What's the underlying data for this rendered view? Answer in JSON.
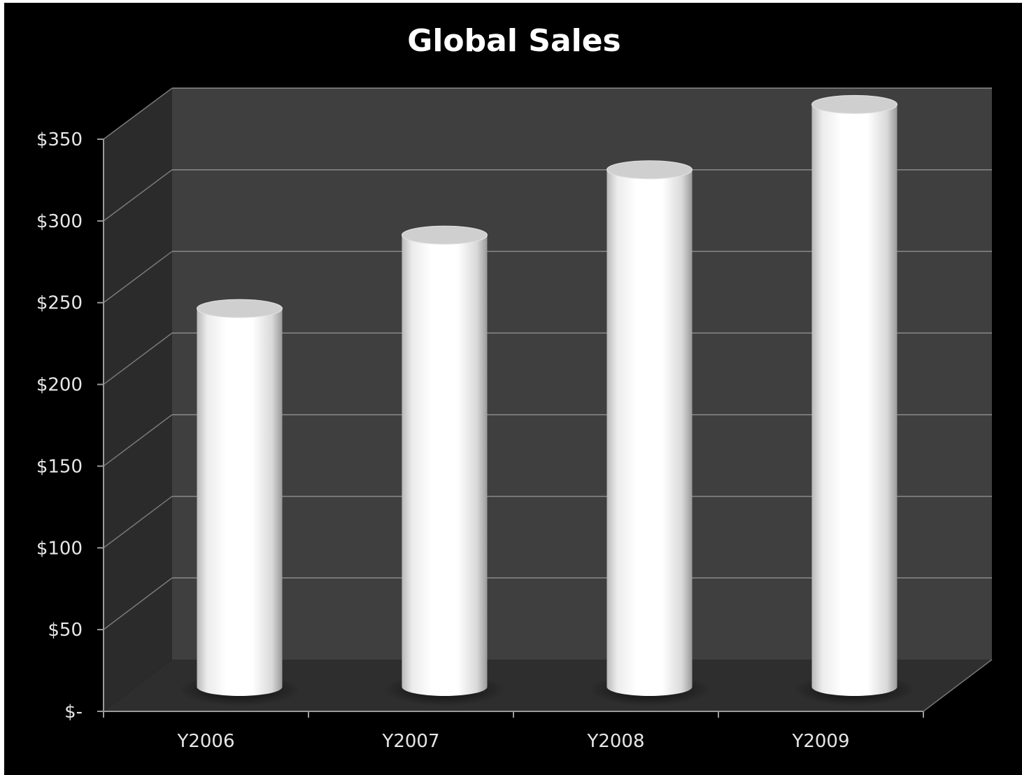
{
  "chart_data": {
    "type": "bar",
    "title": "Global Sales",
    "xlabel": "",
    "ylabel": "",
    "categories": [
      "Y2006",
      "Y2007",
      "Y2008",
      "Y2009"
    ],
    "values": [
      215,
      260,
      300,
      340
    ],
    "ylim": [
      0,
      350
    ],
    "yticks": [
      0,
      50,
      100,
      150,
      200,
      250,
      300,
      350
    ],
    "ytick_labels": [
      "$-",
      "$50",
      "$100",
      "$150",
      "$200",
      "$250",
      "$300",
      "$350"
    ],
    "grid": true,
    "style": "3d-cylinder",
    "colors": {
      "background": "#000000",
      "back_wall": "#3f3f3f",
      "side_wall": "#2b2b2b",
      "floor": "#2e2e2e",
      "gridline": "#8a8a8a",
      "bar": "#ffffff",
      "text": "#e6e6e6"
    }
  }
}
